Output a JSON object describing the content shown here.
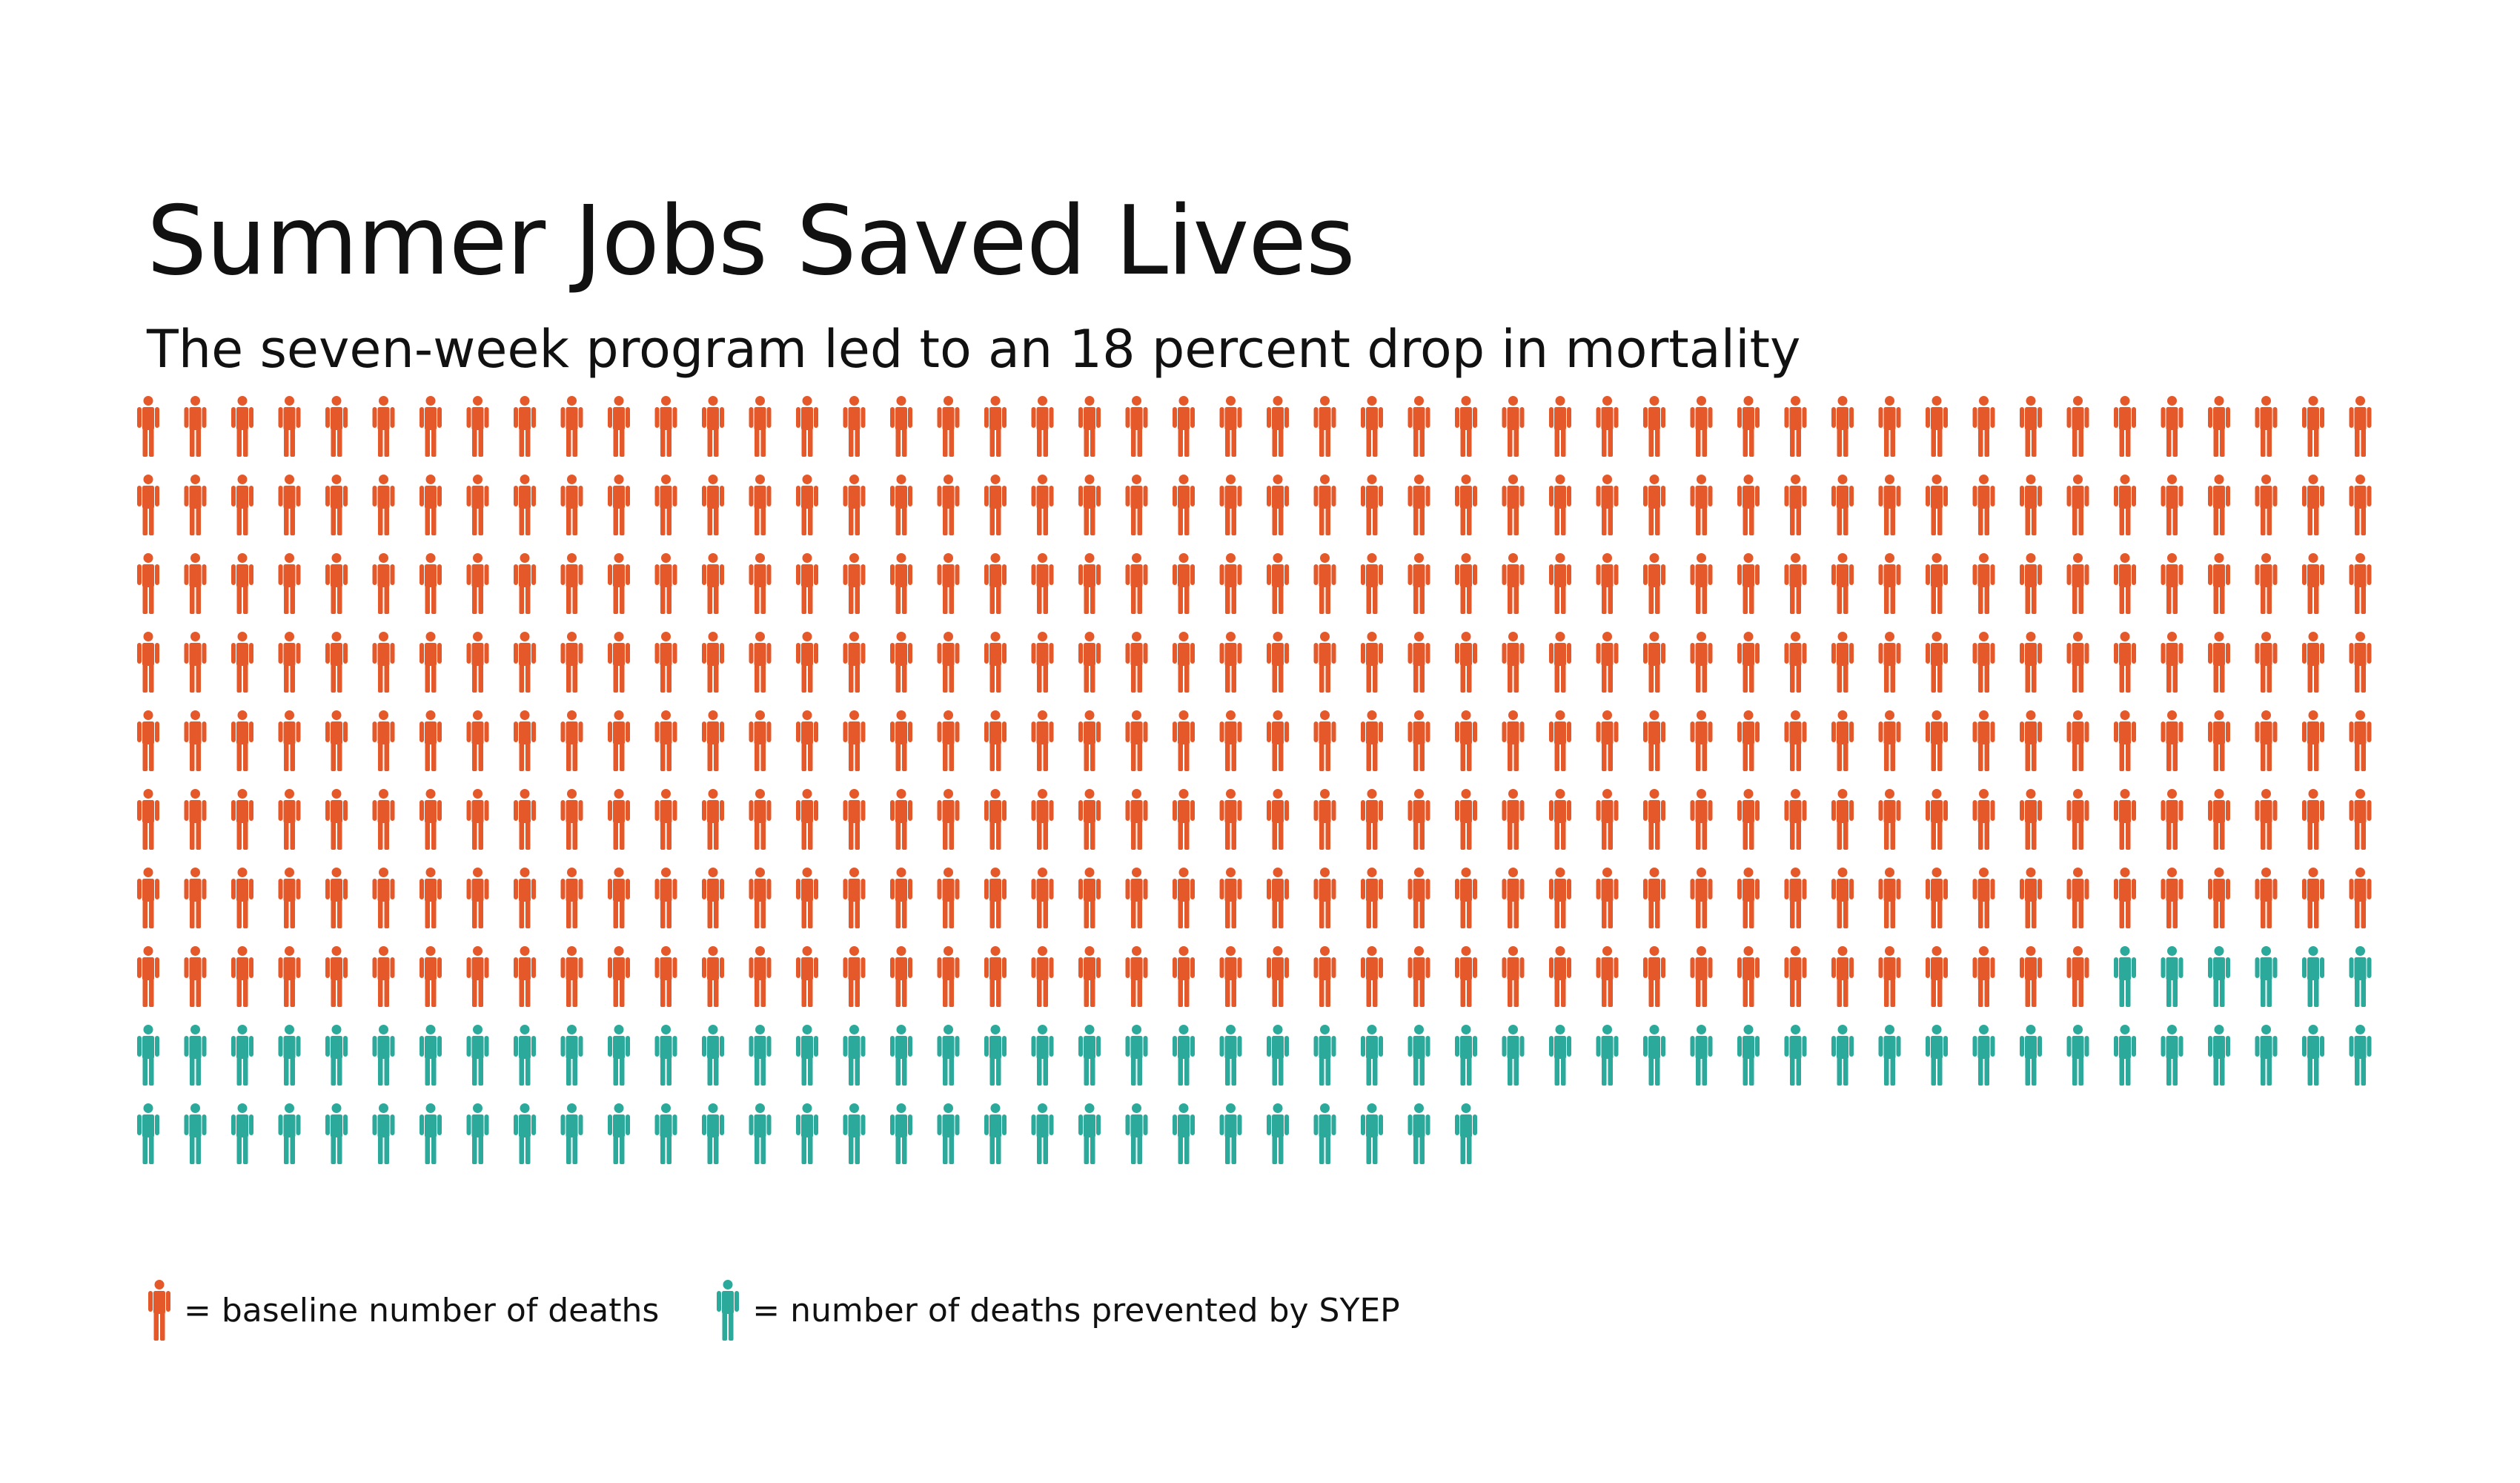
{
  "title": "Summer Jobs Saved Lives",
  "subtitle": "The seven-week program led to an 18 percent drop in mortality",
  "colors": {
    "baseline": "#E4582A",
    "prevented": "#2BAA9C"
  },
  "legend": [
    {
      "label": "= baseline number of deaths",
      "color": "#E4582A",
      "icon": "person-icon"
    },
    {
      "label": "= number of deaths prevented by SYEP",
      "color": "#2BAA9C",
      "icon": "person-icon"
    }
  ],
  "chart_data": {
    "type": "pictograph",
    "icons_per_row": 48,
    "series": [
      {
        "name": "baseline number of deaths",
        "count": 378,
        "color": "#E4582A"
      },
      {
        "name": "number of deaths prevented by SYEP",
        "count": 83,
        "color": "#2BAA9C"
      }
    ]
  }
}
